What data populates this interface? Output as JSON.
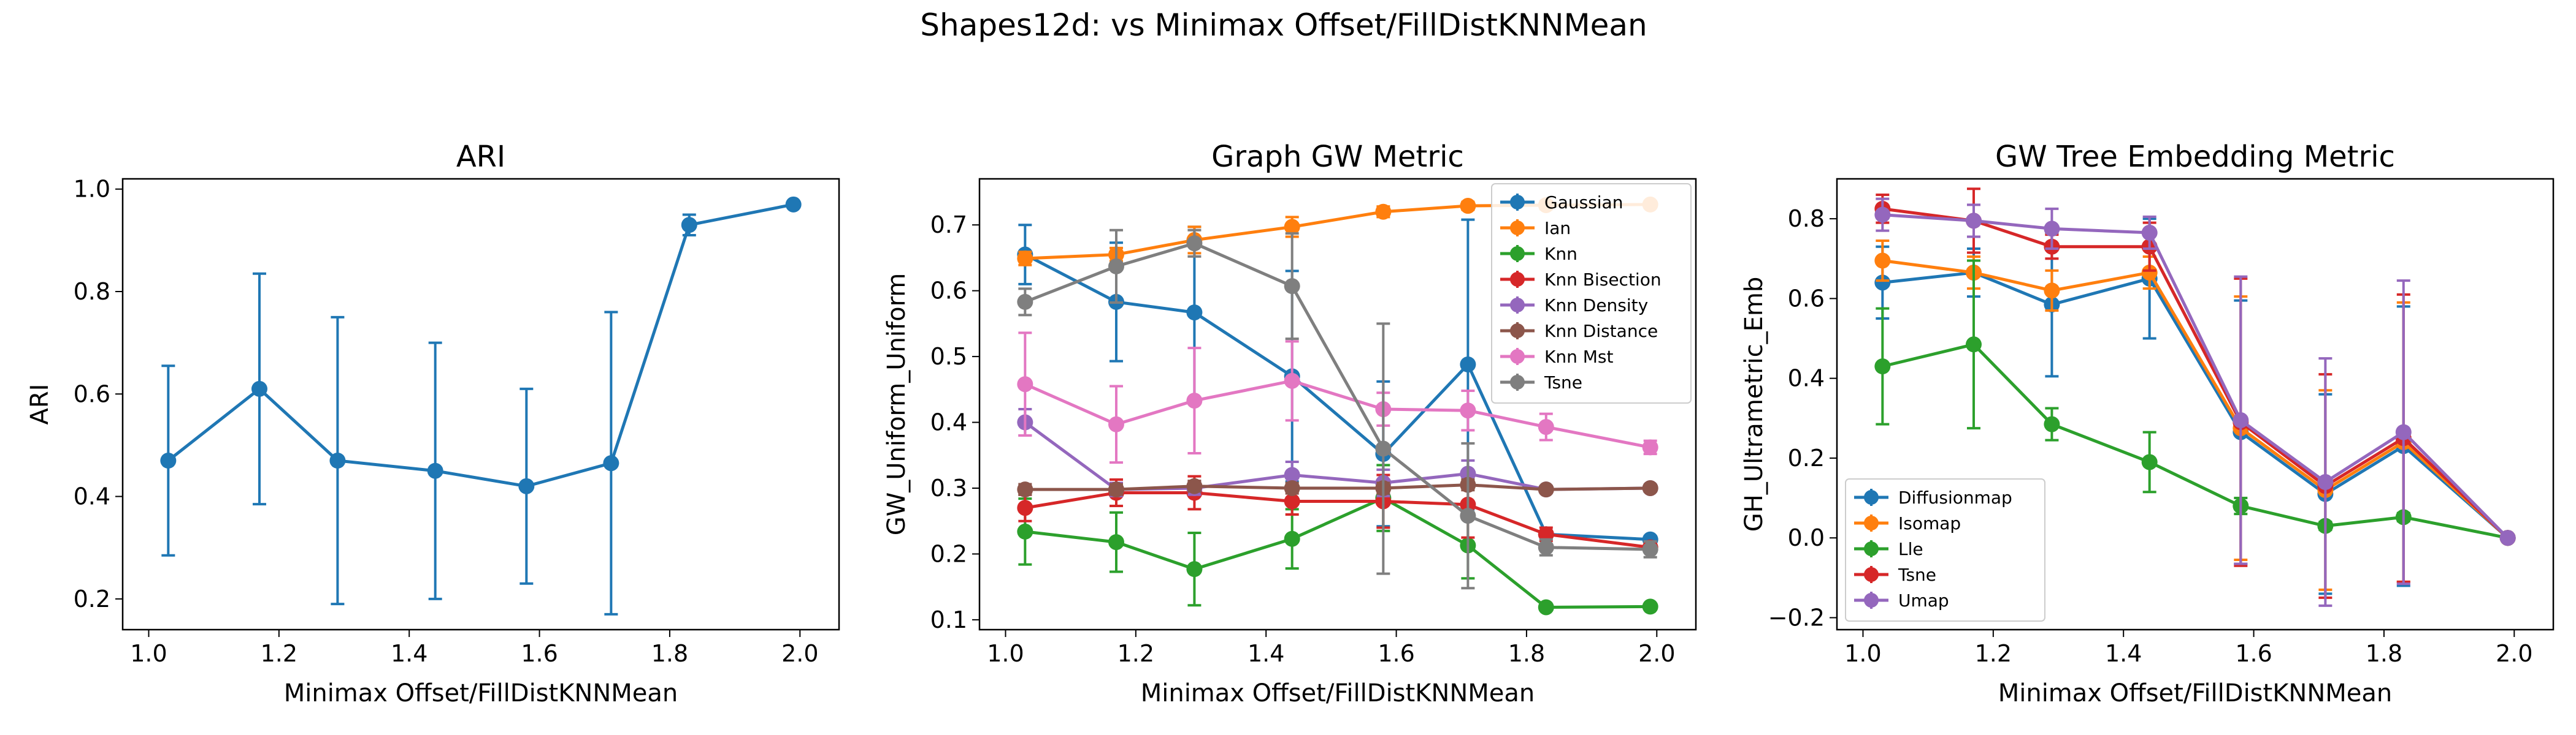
{
  "suptitle": "Shapes12d: vs Minimax Offset/FillDistKNNMean",
  "chart_data": [
    {
      "type": "line",
      "title": "ARI",
      "xlabel": "Minimax Offset/FillDistKNNMean",
      "ylabel": "ARI",
      "xlim": [
        0.96,
        2.06
      ],
      "ylim": [
        0.14,
        1.02
      ],
      "xticks": [
        1.0,
        1.2,
        1.4,
        1.6,
        1.8,
        2.0
      ],
      "yticks": [
        0.2,
        0.4,
        0.6,
        0.8,
        1.0
      ],
      "x": [
        1.03,
        1.17,
        1.29,
        1.44,
        1.58,
        1.71,
        1.83,
        1.99
      ],
      "series": [
        {
          "color": "#1f77b4",
          "values": [
            0.47,
            0.61,
            0.47,
            0.45,
            0.42,
            0.465,
            0.93,
            0.97
          ],
          "err": [
            0.185,
            0.225,
            0.28,
            0.25,
            0.19,
            0.295,
            0.02,
            0.005
          ]
        }
      ]
    },
    {
      "type": "line",
      "title": "Graph GW Metric",
      "xlabel": "Minimax Offset/FillDistKNNMean",
      "ylabel": "GW_Uniform_Uniform",
      "xlim": [
        0.96,
        2.06
      ],
      "ylim": [
        0.085,
        0.77
      ],
      "xticks": [
        1.0,
        1.2,
        1.4,
        1.6,
        1.8,
        2.0
      ],
      "yticks": [
        0.1,
        0.2,
        0.3,
        0.4,
        0.5,
        0.6,
        0.7
      ],
      "legend": "top-right",
      "x": [
        1.03,
        1.17,
        1.29,
        1.44,
        1.58,
        1.71,
        1.83,
        1.99
      ],
      "series": [
        {
          "name": "Gaussian",
          "color": "#1f77b4",
          "values": [
            0.655,
            0.583,
            0.567,
            0.47,
            0.352,
            0.488,
            0.23,
            0.222
          ],
          "err": [
            0.045,
            0.09,
            0.13,
            0.16,
            0.11,
            0.22,
            0.005,
            0.005
          ]
        },
        {
          "name": "Ian",
          "color": "#ff7f0e",
          "values": [
            0.649,
            0.655,
            0.677,
            0.697,
            0.72,
            0.729,
            0.73,
            0.731
          ],
          "err": [
            0.01,
            0.01,
            0.02,
            0.015,
            0.008,
            0.006,
            0.006,
            0.005
          ]
        },
        {
          "name": "Knn",
          "color": "#2ca02c",
          "values": [
            0.234,
            0.218,
            0.177,
            0.223,
            0.285,
            0.213,
            0.119,
            0.12
          ],
          "err": [
            0.05,
            0.045,
            0.055,
            0.045,
            0.05,
            0.05,
            0.003,
            0.003
          ]
        },
        {
          "name": "Knn Bisection",
          "color": "#d62728",
          "values": [
            0.27,
            0.293,
            0.293,
            0.28,
            0.28,
            0.275,
            0.23,
            0.21
          ],
          "err": [
            0.02,
            0.02,
            0.025,
            0.02,
            0.04,
            0.05,
            0.01,
            0.005
          ]
        },
        {
          "name": "Knn Density",
          "color": "#9467bd",
          "values": [
            0.4,
            0.298,
            0.3,
            0.32,
            0.308,
            0.322,
            0.298,
            0.3
          ],
          "err": [
            0.02,
            0.01,
            0.01,
            0.02,
            0.02,
            0.02,
            0.005,
            0.005
          ]
        },
        {
          "name": "Knn Distance",
          "color": "#8c564b",
          "values": [
            0.298,
            0.298,
            0.303,
            0.3,
            0.3,
            0.305,
            0.298,
            0.3
          ],
          "err": [
            0.008,
            0.008,
            0.008,
            0.008,
            0.008,
            0.008,
            0.005,
            0.005
          ]
        },
        {
          "name": "Knn Mst",
          "color": "#e377c2",
          "values": [
            0.458,
            0.397,
            0.433,
            0.463,
            0.42,
            0.418,
            0.393,
            0.362
          ],
          "err": [
            0.078,
            0.058,
            0.08,
            0.06,
            0.025,
            0.03,
            0.02,
            0.01
          ]
        },
        {
          "name": "Tsne",
          "color": "#7f7f7f",
          "values": [
            0.583,
            0.637,
            0.672,
            0.607,
            0.36,
            0.258,
            0.21,
            0.207
          ],
          "err": [
            0.02,
            0.055,
            0.02,
            0.08,
            0.19,
            0.11,
            0.012,
            0.012
          ]
        }
      ]
    },
    {
      "type": "line",
      "title": "GW Tree Embedding Metric",
      "xlabel": "Minimax Offset/FillDistKNNMean",
      "ylabel": "GH_Ultrametric_Emb",
      "xlim": [
        0.96,
        2.06
      ],
      "ylim": [
        -0.23,
        0.9
      ],
      "xticks": [
        1.0,
        1.2,
        1.4,
        1.6,
        1.8,
        2.0
      ],
      "yticks": [
        -0.2,
        0.0,
        0.2,
        0.4,
        0.6,
        0.8
      ],
      "legend": "bottom-left",
      "x": [
        1.03,
        1.17,
        1.29,
        1.44,
        1.58,
        1.71,
        1.83,
        1.99
      ],
      "series": [
        {
          "name": "Diffusionmap",
          "color": "#1f77b4",
          "values": [
            0.64,
            0.665,
            0.585,
            0.65,
            0.265,
            0.11,
            0.23,
            0.0
          ],
          "err": [
            0.09,
            0.06,
            0.18,
            0.15,
            0.33,
            0.25,
            0.35,
            0.005
          ]
        },
        {
          "name": "Isomap",
          "color": "#ff7f0e",
          "values": [
            0.695,
            0.665,
            0.62,
            0.665,
            0.275,
            0.12,
            0.24,
            0.0
          ],
          "err": [
            0.05,
            0.04,
            0.05,
            0.04,
            0.33,
            0.25,
            0.35,
            0.005
          ]
        },
        {
          "name": "Lle",
          "color": "#2ca02c",
          "values": [
            0.43,
            0.485,
            0.285,
            0.19,
            0.08,
            0.03,
            0.052,
            0.0
          ],
          "err": [
            0.145,
            0.21,
            0.04,
            0.075,
            0.02,
            0.01,
            0.01,
            0.005
          ]
        },
        {
          "name": "Tsne",
          "color": "#d62728",
          "values": [
            0.825,
            0.795,
            0.73,
            0.73,
            0.29,
            0.13,
            0.25,
            0.0
          ],
          "err": [
            0.035,
            0.08,
            0.03,
            0.06,
            0.36,
            0.28,
            0.36,
            0.005
          ]
        },
        {
          "name": "Umap",
          "color": "#9467bd",
          "values": [
            0.81,
            0.795,
            0.775,
            0.765,
            0.295,
            0.14,
            0.265,
            0.0
          ],
          "err": [
            0.04,
            0.04,
            0.05,
            0.04,
            0.36,
            0.31,
            0.38,
            0.005
          ]
        }
      ]
    }
  ]
}
